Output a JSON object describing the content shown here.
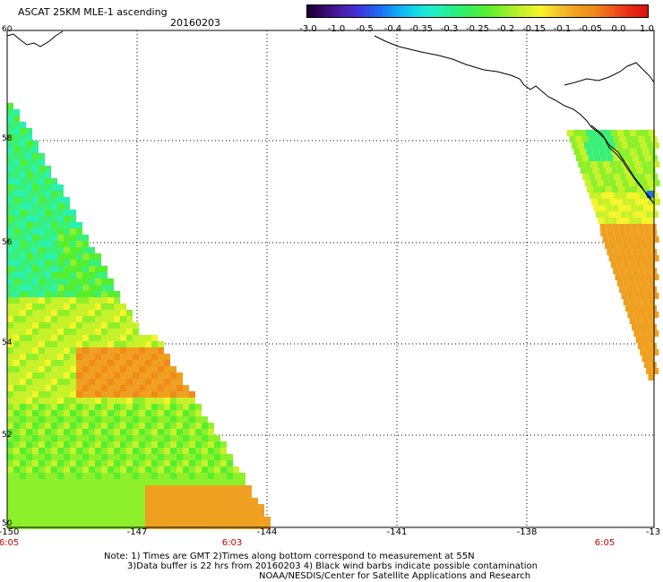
{
  "header": {
    "title": "ASCAT 25KM MLE-1 ascending",
    "date": "20160203"
  },
  "colorbar": {
    "colors": [
      "#1a0033",
      "#3b0a6e",
      "#4b1fb0",
      "#3a3ae0",
      "#1f6cf5",
      "#10a8f5",
      "#12d8e8",
      "#1ff0c8",
      "#25f090",
      "#35f05a",
      "#55ef30",
      "#8ef02a",
      "#c7f22a",
      "#f5f52a",
      "#f5c52a",
      "#f0a020",
      "#f08a1a",
      "#f05a1a",
      "#e82a12",
      "#dd1010"
    ],
    "labels": [
      "-3.0",
      "-1.0",
      "-0.5",
      "-0.4",
      "-0.35",
      "-0.3",
      "-0.25",
      "-0.2",
      "-0.15",
      "-0.1",
      "-0.05",
      "0.0",
      "1.0"
    ]
  },
  "map": {
    "lat_labels": [
      "60",
      "58",
      "56",
      "54",
      "52",
      "50"
    ],
    "lon_labels": [
      "-150",
      "-147",
      "-144",
      "-141",
      "-138",
      "-13"
    ],
    "time_labels": [
      {
        "lon": -150,
        "text": "6:05"
      },
      {
        "lon": -145,
        "text": "6:03"
      },
      {
        "lon": -136.1,
        "text": "6:05"
      }
    ],
    "lon_range": [
      -150,
      -135
    ],
    "lat_range": [
      50,
      60
    ]
  },
  "notes": {
    "line1": "Note: 1) Times are GMT 2)Times along bottom correspond to measurement at 55N",
    "line2": "3)Data buffer is 22 hrs from 20160203 4) Black wind barbs indicate possible contamination",
    "line3": "NOAA/NESDIS/Center for Satellite Applications and Research"
  }
}
